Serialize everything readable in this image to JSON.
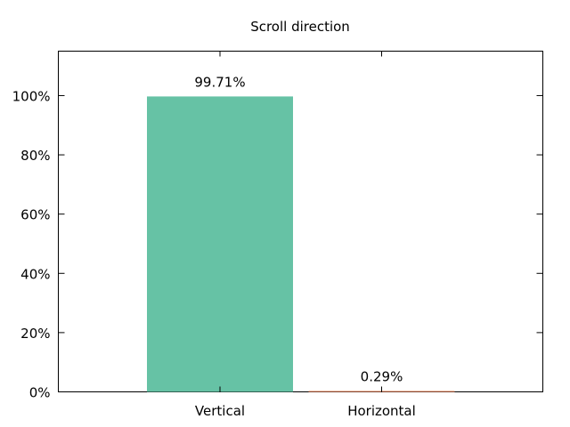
{
  "chart_data": {
    "type": "bar",
    "title": "Scroll direction",
    "xlabel": "",
    "ylabel": "",
    "categories": [
      "Vertical",
      "Horizontal"
    ],
    "values": [
      99.71,
      0.29
    ],
    "value_labels": [
      "99.71%",
      "0.29%"
    ],
    "colors": [
      "#66c2a5",
      "#fc8d62"
    ],
    "ylim": [
      0,
      115
    ],
    "yticks": [
      0,
      20,
      40,
      60,
      80,
      100
    ],
    "ytick_labels": [
      "0%",
      "20%",
      "40%",
      "60%",
      "80%",
      "100%"
    ],
    "grid": false,
    "legend": "none"
  }
}
